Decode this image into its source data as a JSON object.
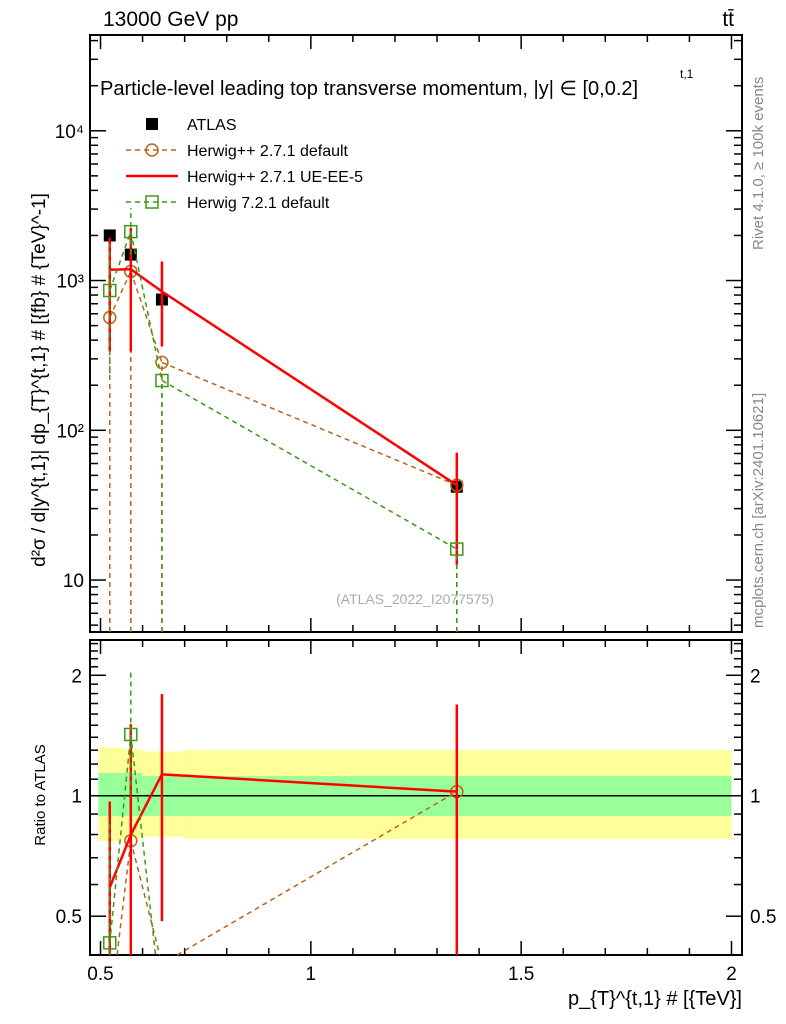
{
  "chart_data": {
    "type": "line",
    "header_left": "13000 GeV pp",
    "header_right": "tt̄",
    "title": "Particle-level leading top transverse momentum, |y^{t,1}| ∈ [0,0.2]",
    "title_main": "Particle-level leading top transverse momentum, |",
    "title_sup": "t,1",
    "title_y": "y",
    "title_tail": "| ∈ [0,0.2]",
    "ylabel": "d²σ / d|y^{t,1}| dp_{T}^{t,1} # [{fb} # {TeV}^-1]",
    "ylabel_ratio": "Ratio to ATLAS",
    "xlabel": "p_{T}^{t,1} # [{TeV}]",
    "side_label_1": "Rivet 4.1.0, ≥ 100k events",
    "side_label_2": "mcplots.cern.ch [arXiv:2401.10621]",
    "watermark": "(ATLAS_2022_I2077575)",
    "xlim": [
      0.475,
      2.025
    ],
    "ylim": [
      4.5,
      43600
    ],
    "ylim_ratio": [
      0.4,
      2.45
    ],
    "yscale": "log",
    "x_ticks": [
      "0.5",
      "1",
      "1.5",
      "2"
    ],
    "y_ticks": [
      "10",
      "10²",
      "10³",
      "10⁴"
    ],
    "y_ticks_ratio": [
      "0.5",
      "1",
      "2"
    ],
    "x": [
      0.522,
      0.572,
      0.646,
      1.347
    ],
    "series": [
      {
        "name": "ATLAS",
        "color": "#000000",
        "marker": "filled-square",
        "values": [
          2000,
          1490,
          747,
          42
        ]
      },
      {
        "name": "Herwig++ 2.7.1 default",
        "color": "#b8651a",
        "marker": "open-circle",
        "dash": true,
        "values": [
          566,
          1150,
          284,
          43
        ],
        "err_low": [
          1,
          1,
          1,
          1
        ],
        "err_high": [
          566,
          1150,
          284,
          43
        ]
      },
      {
        "name": "Herwig++ 2.7.1 UE-EE-5",
        "color": "#ff0000",
        "marker": "none",
        "values": [
          1180,
          1190,
          845,
          43
        ],
        "err_low": [
          336,
          336,
          363,
          12.6
        ],
        "err_high": [
          1935,
          2250,
          1340,
          71
        ]
      },
      {
        "name": "Herwig 7.2.1 default",
        "color": "#3c9a14",
        "marker": "open-square",
        "dash": true,
        "values": [
          858,
          2120,
          215,
          16.1
        ],
        "err_low": [
          240,
          1500,
          1,
          1
        ],
        "err_high": [
          1750,
          3050,
          215,
          16.1
        ]
      }
    ],
    "ratio_bands": {
      "edges": [
        0.495,
        0.55,
        0.6,
        0.7,
        2.0
      ],
      "yellow_low": [
        0.77,
        0.78,
        0.79,
        0.78
      ],
      "yellow_high": [
        1.32,
        1.31,
        1.29,
        1.3
      ],
      "green_low": [
        0.89,
        0.89,
        0.89,
        0.89
      ],
      "green_high": [
        1.14,
        1.14,
        1.12,
        1.12
      ],
      "yellow": "#ffff99",
      "green": "#99ff99"
    },
    "legend_position": "top-left"
  }
}
